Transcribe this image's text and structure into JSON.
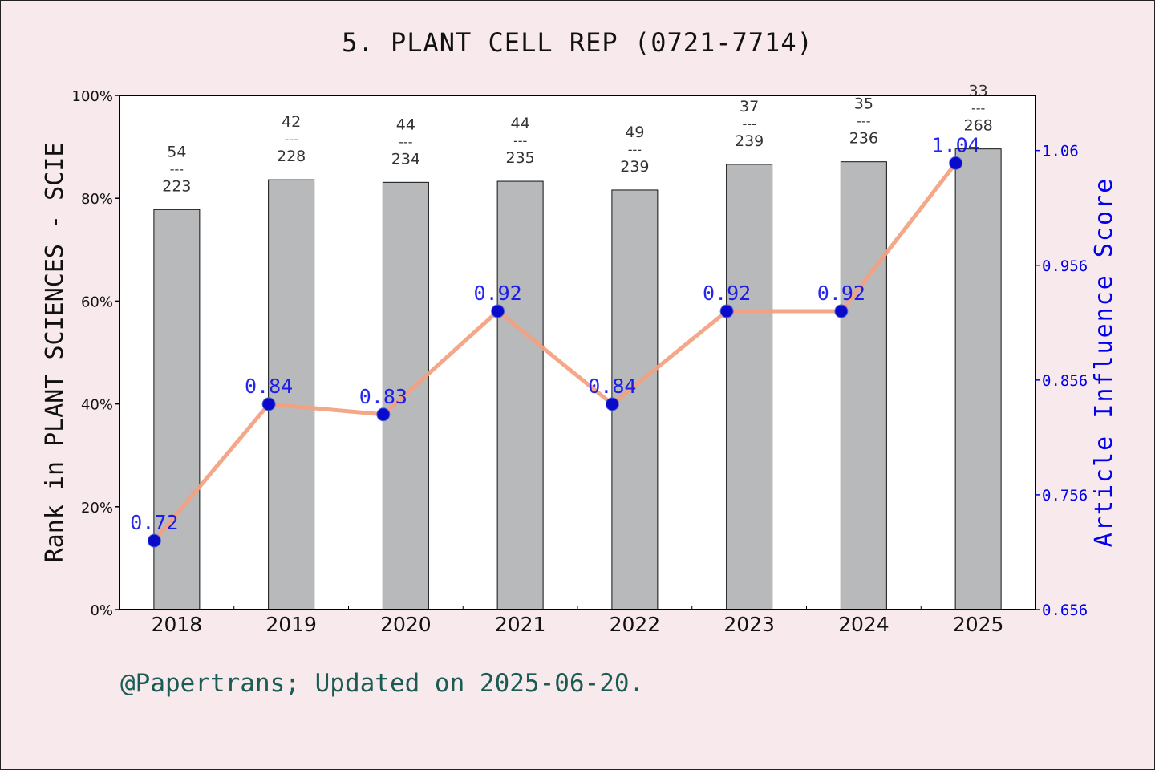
{
  "title": "5. PLANT CELL REP (0721-7714)",
  "footer": "@Papertrans; Updated on 2025-06-20.",
  "colors": {
    "background": "#f8e9ec",
    "bar": "#b8b9bb",
    "line": "#f4a07f",
    "marker": "#0a0acd",
    "right_axis": "#0000ee",
    "footer": "#1a5c54"
  },
  "chart_data": {
    "type": "bar",
    "categories": [
      "2018",
      "2019",
      "2020",
      "2021",
      "2022",
      "2023",
      "2024",
      "2025"
    ],
    "ylabel": "Rank in PLANT SCIENCES - SCIE",
    "y2label": "Article Influence Score",
    "ylim": [
      0,
      100
    ],
    "y_ticks": [
      "0%",
      "20%",
      "40%",
      "60%",
      "80%",
      "100%"
    ],
    "y2lim": [
      0.656,
      1.104
    ],
    "y2_ticks": [
      "0.656",
      "0.756",
      "0.856",
      "0.956",
      "1.06"
    ],
    "grid": false,
    "series": [
      {
        "type": "bar",
        "values": [
          77.8,
          83.6,
          83.1,
          83.3,
          81.6,
          86.6,
          87.1,
          89.6
        ],
        "labels": [
          {
            "rank": "54",
            "sep": "---",
            "total": "223"
          },
          {
            "rank": "42",
            "sep": "---",
            "total": "228"
          },
          {
            "rank": "44",
            "sep": "---",
            "total": "234"
          },
          {
            "rank": "44",
            "sep": "---",
            "total": "235"
          },
          {
            "rank": "49",
            "sep": "---",
            "total": "239"
          },
          {
            "rank": "37",
            "sep": "---",
            "total": "239"
          },
          {
            "rank": "35",
            "sep": "---",
            "total": "236"
          },
          {
            "rank": "33",
            "sep": "---",
            "total": "268"
          }
        ]
      },
      {
        "type": "line",
        "axis": "right",
        "values": [
          0.716,
          0.835,
          0.826,
          0.916,
          0.835,
          0.916,
          0.916,
          1.045
        ],
        "labels": [
          "0.72",
          "0.84",
          "0.83",
          "0.92",
          "0.84",
          "0.92",
          "0.92",
          "1.04"
        ]
      }
    ]
  }
}
